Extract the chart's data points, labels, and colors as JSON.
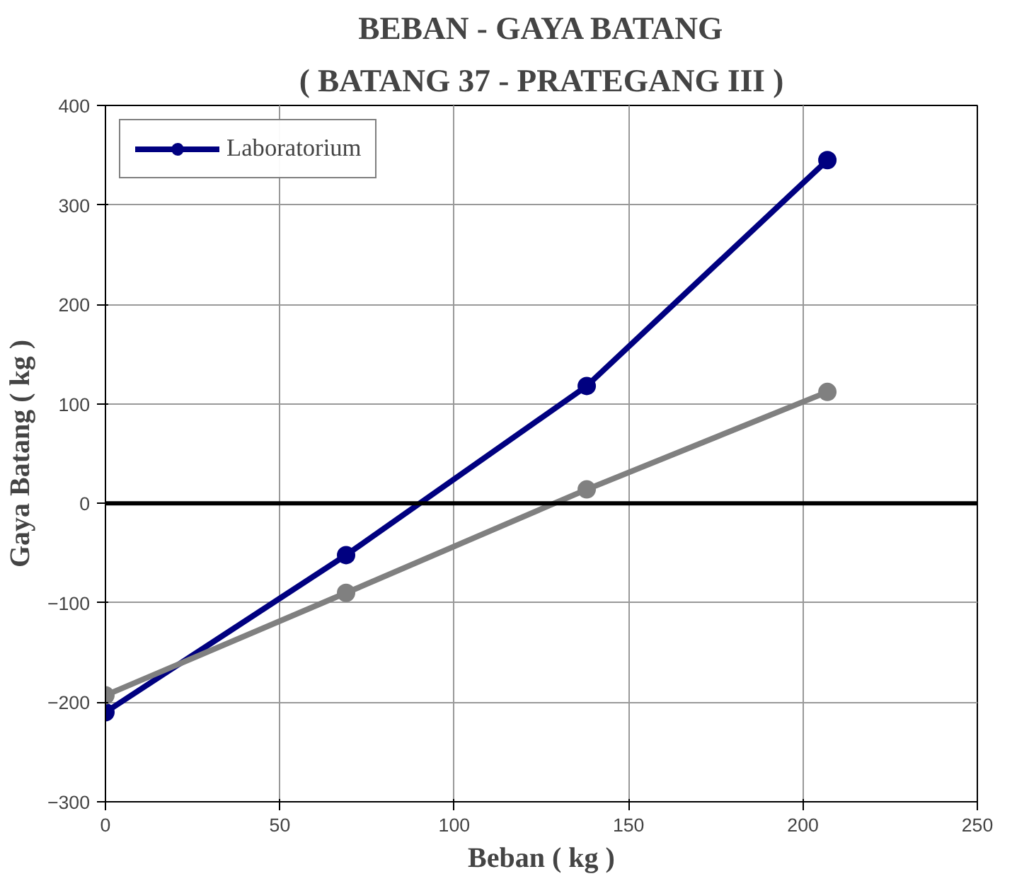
{
  "chart_data": {
    "type": "line",
    "title": "BEBAN - GAYA BATANG",
    "subtitle": "( BATANG 37 - PRATEGANG III )",
    "xlabel": "Beban ( kg )",
    "ylabel": "Gaya Batang ( kg )",
    "x": [
      0,
      69,
      138,
      207
    ],
    "series": [
      {
        "name": "Laboratorium",
        "color": "#000080",
        "values": [
          -210,
          -52,
          118,
          345
        ]
      },
      {
        "color": "#808080",
        "values": [
          -193,
          -90,
          14,
          112
        ]
      }
    ],
    "xlim": [
      0,
      250
    ],
    "xticks": [
      0,
      50,
      100,
      150,
      200,
      250
    ],
    "ylim": [
      -300,
      400
    ],
    "yticks": [
      -300,
      -200,
      -100,
      0,
      100,
      200,
      300,
      400
    ],
    "ref_lines": [
      {
        "axis": "y",
        "value": 0,
        "color": "#000000"
      }
    ],
    "grid": true,
    "legend": "top left",
    "marker": "circle",
    "line_style": "solid"
  }
}
